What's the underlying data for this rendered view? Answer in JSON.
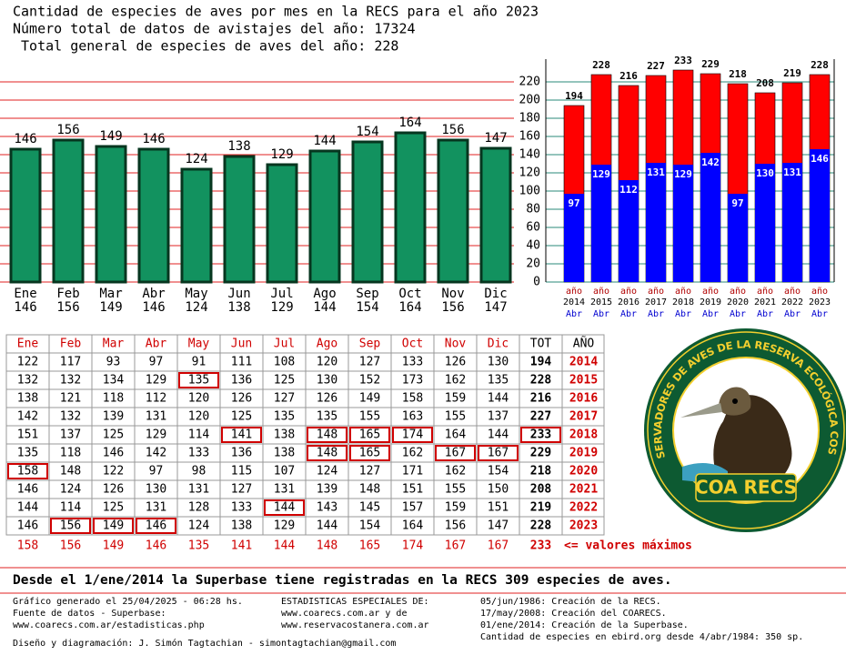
{
  "header": {
    "lines": [
      "Cantidad de especies de aves por mes en la RECS para el año 2023",
      "Número total de datos de avistajes del año: 17324",
      " Total general de especies de aves del año: 228"
    ]
  },
  "chart_data": [
    {
      "type": "bar",
      "categories": [
        "Ene",
        "Feb",
        "Mar",
        "Abr",
        "May",
        "Jun",
        "Jul",
        "Ago",
        "Sep",
        "Oct",
        "Nov",
        "Dic"
      ],
      "values": [
        146,
        156,
        149,
        146,
        124,
        138,
        129,
        144,
        154,
        164,
        156,
        147
      ],
      "color": "#12925f",
      "grid_color": "#e02020",
      "ylim": [
        0,
        220
      ]
    },
    {
      "type": "overlap_bar",
      "categories": [
        "2014",
        "2015",
        "2016",
        "2017",
        "2018",
        "2019",
        "2020",
        "2021",
        "2022",
        "2023"
      ],
      "x_label_top": "año",
      "x_label_bottom": "Abr",
      "series": [
        {
          "color": "#ff0000",
          "values": [
            194,
            228,
            216,
            227,
            233,
            229,
            218,
            208,
            219,
            228
          ]
        },
        {
          "color": "#0000ff",
          "values": [
            97,
            129,
            112,
            131,
            129,
            142,
            97,
            130,
            131,
            146
          ]
        }
      ],
      "ylim": [
        0,
        245
      ],
      "yticks": [
        0,
        20,
        40,
        60,
        80,
        100,
        120,
        140,
        160,
        180,
        200,
        220
      ],
      "grid": true,
      "grid_color": "#2a8a78"
    }
  ],
  "table": {
    "header": [
      "Ene",
      "Feb",
      "Mar",
      "Abr",
      "May",
      "Jun",
      "Jul",
      "Ago",
      "Sep",
      "Oct",
      "Nov",
      "Dic",
      "TOT",
      "AÑO"
    ],
    "rows": [
      [
        122,
        117,
        93,
        97,
        91,
        111,
        108,
        120,
        127,
        133,
        126,
        130,
        194,
        2014
      ],
      [
        132,
        132,
        134,
        129,
        135,
        136,
        125,
        130,
        152,
        173,
        162,
        135,
        228,
        2015
      ],
      [
        138,
        121,
        118,
        112,
        120,
        126,
        127,
        126,
        149,
        158,
        159,
        144,
        216,
        2016
      ],
      [
        142,
        132,
        139,
        131,
        120,
        125,
        135,
        135,
        155,
        163,
        155,
        137,
        227,
        2017
      ],
      [
        151,
        137,
        125,
        129,
        114,
        141,
        138,
        148,
        165,
        174,
        164,
        144,
        233,
        2018
      ],
      [
        135,
        118,
        146,
        142,
        133,
        136,
        138,
        148,
        165,
        162,
        167,
        167,
        229,
        2019
      ],
      [
        158,
        148,
        122,
        97,
        98,
        115,
        107,
        124,
        127,
        171,
        162,
        154,
        218,
        2020
      ],
      [
        146,
        124,
        126,
        130,
        131,
        127,
        131,
        139,
        148,
        151,
        155,
        150,
        208,
        2021
      ],
      [
        144,
        114,
        125,
        131,
        128,
        133,
        144,
        143,
        145,
        157,
        159,
        151,
        219,
        2022
      ],
      [
        146,
        156,
        149,
        146,
        124,
        138,
        129,
        144,
        154,
        164,
        156,
        147,
        228,
        2023
      ]
    ],
    "max_cells": [
      [
        1,
        4
      ],
      [
        4,
        5
      ],
      [
        4,
        7
      ],
      [
        4,
        8
      ],
      [
        4,
        9
      ],
      [
        4,
        12
      ],
      [
        5,
        7
      ],
      [
        5,
        8
      ],
      [
        5,
        10
      ],
      [
        5,
        11
      ],
      [
        6,
        0
      ],
      [
        8,
        6
      ],
      [
        9,
        1
      ],
      [
        9,
        2
      ],
      [
        9,
        3
      ]
    ],
    "max_row": {
      "values": [
        158,
        156,
        149,
        146,
        135,
        141,
        144,
        148,
        165,
        174,
        167,
        167,
        233
      ],
      "note": "<= valores máximos"
    }
  },
  "logo": {
    "ring_text": "CLUB DE OBSERVADORES DE AVES DE LA RESERVA ECOLÓGICA COSTANERA SUR",
    "name": "COA RECS"
  },
  "summary": "Desde el 1/ene/2014 la Superbase tiene registradas en la RECS 309 especies de aves.",
  "footer": {
    "col1": [
      "Gráfico generado el 25/04/2025 - 06:28 hs.",
      "Fuente de datos - Superbase:",
      "www.coarecs.com.ar/estadisticas.php"
    ],
    "col2": [
      "ESTADISTICAS ESPECIALES DE:",
      "www.coarecs.com.ar y de",
      "www.reservacostanera.com.ar"
    ],
    "col3": [
      "05/jun/1986: Creación de la RECS.",
      "17/may/2008: Creación del COARECS.",
      "01/ene/2014: Creación de la Superbase.",
      "Cantidad de especies en ebird.org desde 4/abr/1984: 350 sp."
    ],
    "credit": "Diseño y diagramación: J. Simón Tagtachian - simontagtachian@gmail.com"
  }
}
